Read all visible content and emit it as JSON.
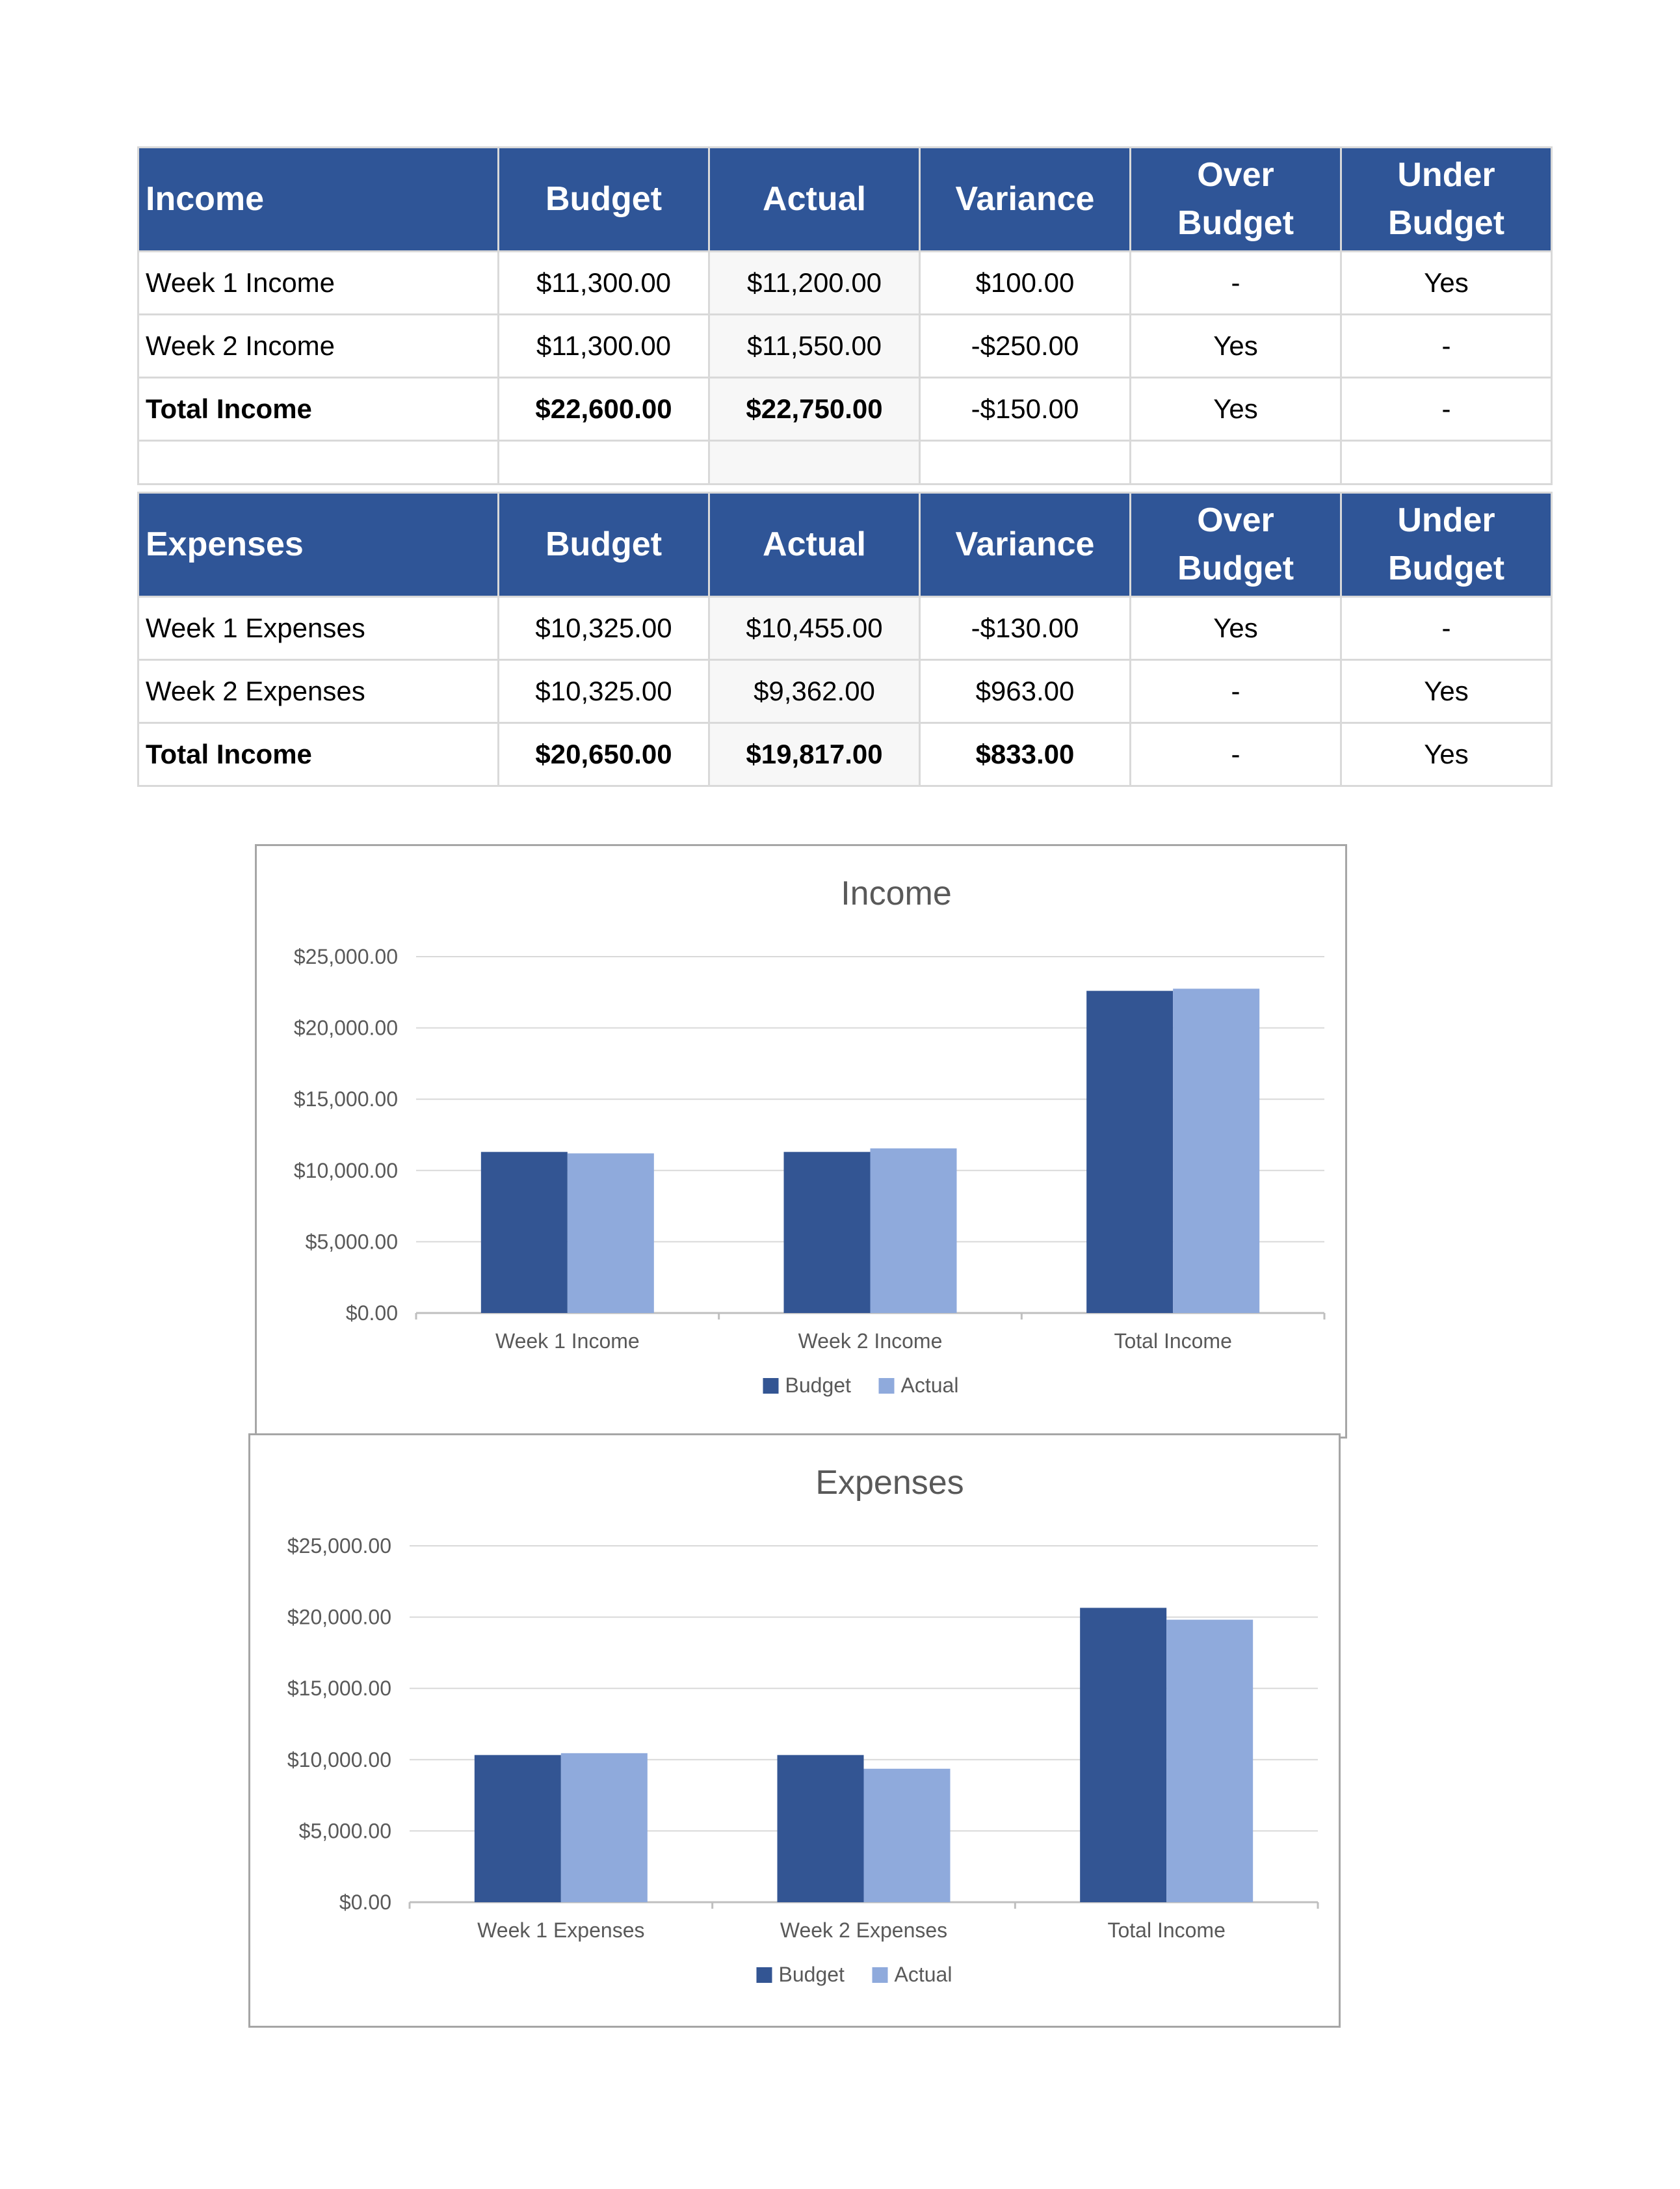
{
  "income_table": {
    "headers": [
      "Income",
      "Budget",
      "Actual",
      "Variance",
      "Over Budget",
      "Under Budget"
    ],
    "rows": [
      {
        "label": "Week 1 Income",
        "budget": "$11,300.00",
        "actual": "$11,200.00",
        "variance": "$100.00",
        "over": "-",
        "under": "Yes"
      },
      {
        "label": "Week 2 Income",
        "budget": "$11,300.00",
        "actual": "$11,550.00",
        "variance": "-$250.00",
        "over": "Yes",
        "under": "-"
      }
    ],
    "total": {
      "label": "Total Income",
      "budget": "$22,600.00",
      "actual": "$22,750.00",
      "variance": "-$150.00",
      "over": "Yes",
      "under": "-"
    }
  },
  "expenses_table": {
    "headers": [
      "Expenses",
      "Budget",
      "Actual",
      "Variance",
      "Over Budget",
      "Under Budget"
    ],
    "rows": [
      {
        "label": "Week 1 Expenses",
        "budget": "$10,325.00",
        "actual": "$10,455.00",
        "variance": "-$130.00",
        "over": "Yes",
        "under": "-"
      },
      {
        "label": "Week 2 Expenses",
        "budget": "$10,325.00",
        "actual": "$9,362.00",
        "variance": "$963.00",
        "over": "-",
        "under": "Yes"
      }
    ],
    "total": {
      "label": "Total Income",
      "budget": "$20,650.00",
      "actual": "$19,817.00",
      "variance": "$833.00",
      "over": "-",
      "under": "Yes"
    }
  },
  "colors": {
    "header": "#2f5597",
    "budget": "#335593",
    "actual": "#8faadc"
  },
  "chart_data": [
    {
      "type": "bar",
      "title": "Income",
      "categories": [
        "Week 1 Income",
        "Week 2 Income",
        "Total Income"
      ],
      "series": [
        {
          "name": "Budget",
          "values": [
            11300,
            11300,
            22600
          ]
        },
        {
          "name": "Actual",
          "values": [
            11200,
            11550,
            22750
          ]
        }
      ],
      "ylim": [
        0,
        25000
      ],
      "yticks": [
        "$0.00",
        "$5,000.00",
        "$10,000.00",
        "$15,000.00",
        "$20,000.00",
        "$25,000.00"
      ],
      "legend": "bottom",
      "grid": true
    },
    {
      "type": "bar",
      "title": "Expenses",
      "categories": [
        "Week 1 Expenses",
        "Week 2 Expenses",
        "Total Income"
      ],
      "series": [
        {
          "name": "Budget",
          "values": [
            10325,
            10325,
            20650
          ]
        },
        {
          "name": "Actual",
          "values": [
            10455,
            9362,
            19817
          ]
        }
      ],
      "ylim": [
        0,
        25000
      ],
      "yticks": [
        "$0.00",
        "$5,000.00",
        "$10,000.00",
        "$15,000.00",
        "$20,000.00",
        "$25,000.00"
      ],
      "legend": "bottom",
      "grid": true
    }
  ]
}
